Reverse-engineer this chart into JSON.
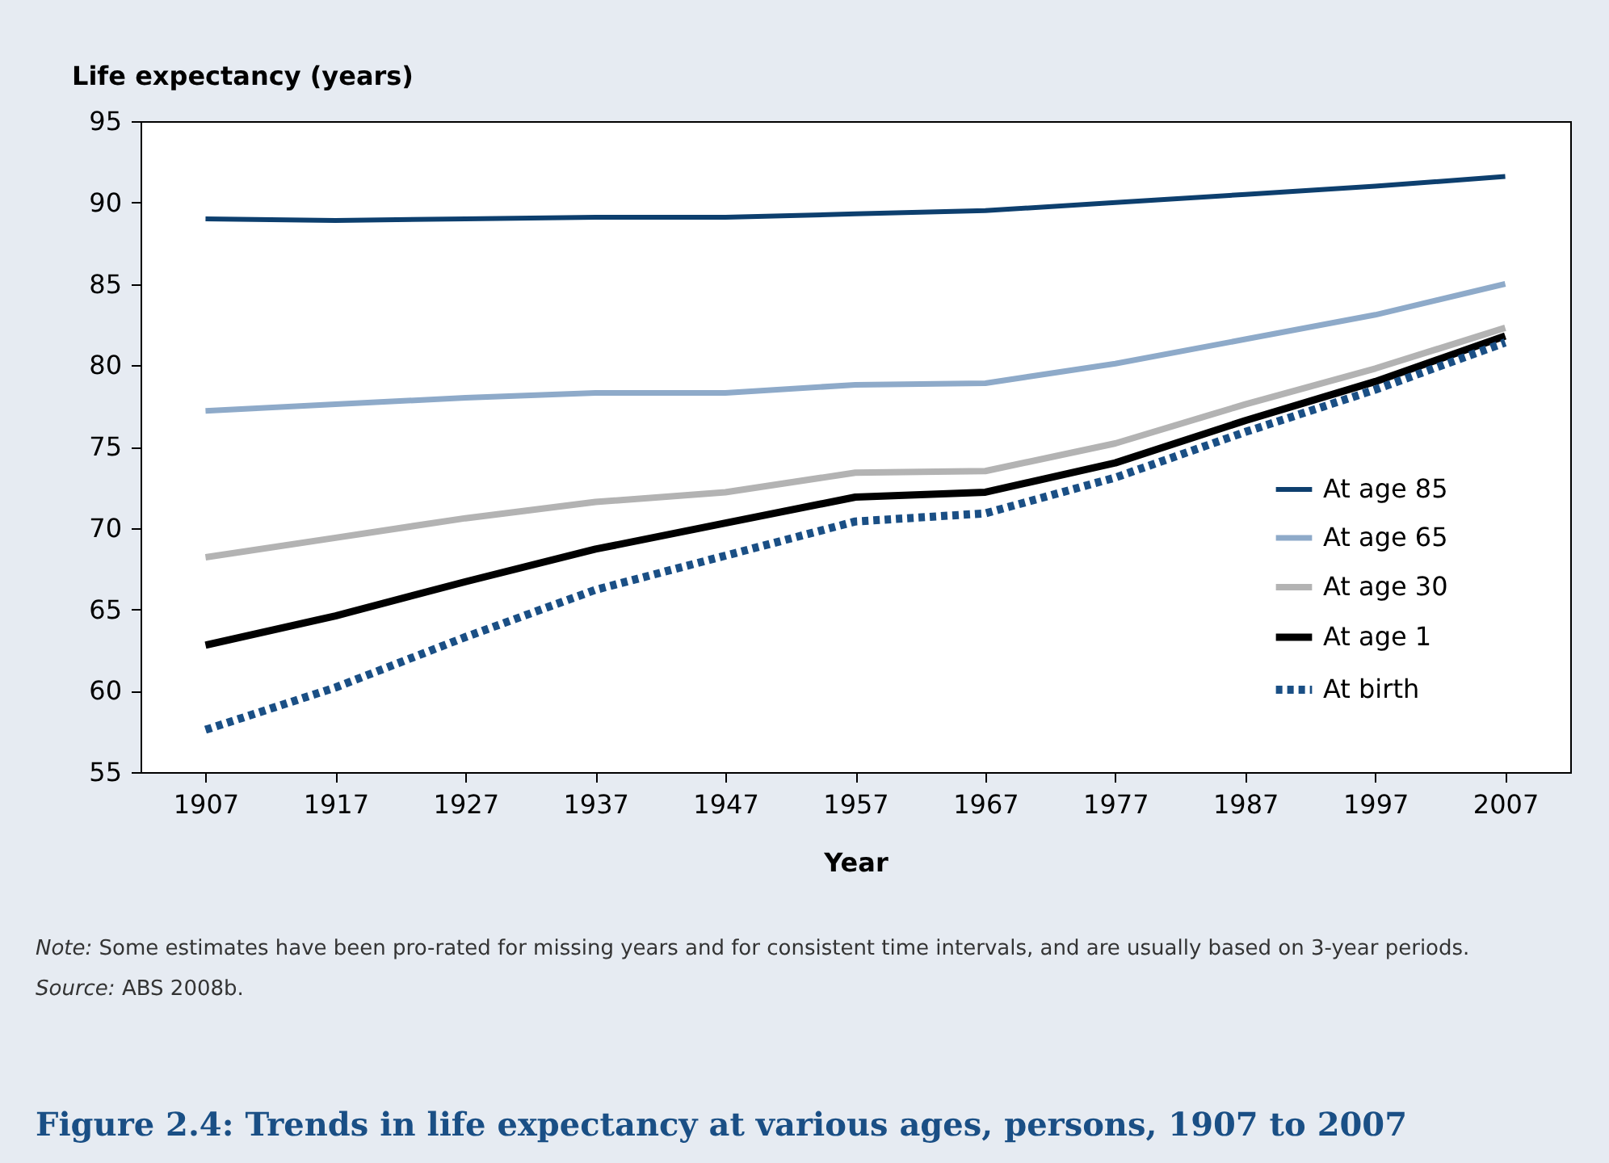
{
  "chart_data": {
    "type": "line",
    "title": "Figure 2.4: Trends in life expectancy at various ages, persons, 1907 to 2007",
    "xlabel": "Year",
    "ylabel": "Life expectancy (years)",
    "x": [
      1907,
      1917,
      1927,
      1937,
      1947,
      1957,
      1967,
      1977,
      1987,
      1997,
      2007
    ],
    "series": [
      {
        "name": "At age 85",
        "color": "#0d3f6e",
        "line_style": "solid",
        "values": [
          89.0,
          88.9,
          89.0,
          89.1,
          89.1,
          89.3,
          89.5,
          90.0,
          90.5,
          91.0,
          91.6
        ]
      },
      {
        "name": "At age 65",
        "color": "#8eaac9",
        "line_style": "solid",
        "values": [
          77.2,
          77.6,
          78.0,
          78.3,
          78.3,
          78.8,
          78.9,
          80.1,
          81.6,
          83.1,
          85.0
        ]
      },
      {
        "name": "At age 30",
        "color": "#b3b3b3",
        "line_style": "solid",
        "values": [
          68.2,
          69.4,
          70.6,
          71.6,
          72.2,
          73.4,
          73.5,
          75.2,
          77.6,
          79.8,
          82.3
        ]
      },
      {
        "name": "At age 1",
        "color": "#000000",
        "line_style": "solid",
        "values": [
          62.8,
          64.6,
          66.7,
          68.7,
          70.3,
          71.9,
          72.2,
          74.0,
          76.6,
          79.0,
          81.8
        ]
      },
      {
        "name": "At birth",
        "color": "#1a4f85",
        "line_style": "dashed",
        "values": [
          57.6,
          60.2,
          63.3,
          66.2,
          68.3,
          70.4,
          70.9,
          73.1,
          75.9,
          78.5,
          81.4
        ]
      }
    ],
    "xlim": [
      1902,
      2012
    ],
    "xticks": [
      1907,
      1917,
      1927,
      1937,
      1947,
      1957,
      1967,
      1977,
      1987,
      1997,
      2007
    ],
    "ylim": [
      55,
      95
    ],
    "yticks": [
      55,
      60,
      65,
      70,
      75,
      80,
      85,
      90,
      95
    ],
    "grid": false,
    "legend": "right",
    "marker": "none",
    "annotations": [
      "Note: Some estimates have been pro-rated for missing years and for consistent time intervals, and are usually based on 3-year periods.",
      "Source: ABS 2008b."
    ]
  }
}
